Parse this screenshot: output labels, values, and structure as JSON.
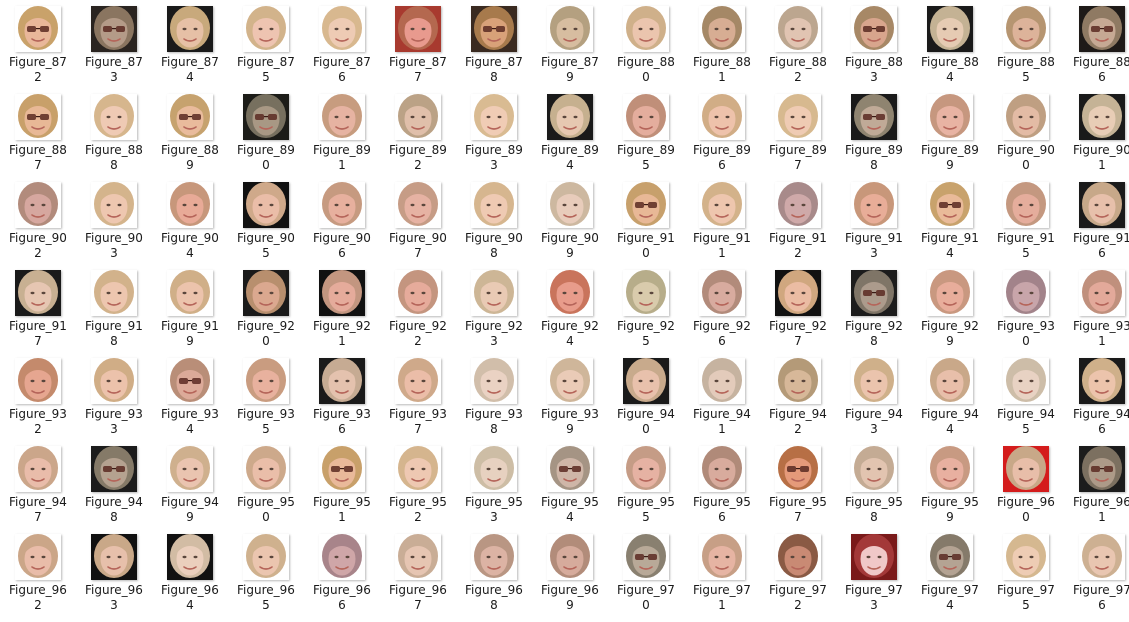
{
  "files": [
    {
      "name": "Figure_872",
      "thumb": {
        "hair": "#c9a26a",
        "skin": "#e9b79a",
        "bg": "#ffffff",
        "glasses": true
      }
    },
    {
      "name": "Figure_873",
      "thumb": {
        "hair": "#8a7560",
        "skin": "#b49b88",
        "bg": "#2a2420",
        "glasses": true
      }
    },
    {
      "name": "Figure_874",
      "thumb": {
        "hair": "#c8a97c",
        "skin": "#e6c0a6",
        "bg": "#1a1a1a",
        "glasses": false
      }
    },
    {
      "name": "Figure_875",
      "thumb": {
        "hair": "#d2b38b",
        "skin": "#eec4b1",
        "bg": "#ffffff",
        "glasses": false
      }
    },
    {
      "name": "Figure_876",
      "thumb": {
        "hair": "#d8b88f",
        "skin": "#eecbb4",
        "bg": "#ffffff",
        "glasses": false
      }
    },
    {
      "name": "Figure_877",
      "thumb": {
        "hair": "#b4684f",
        "skin": "#e89a8e",
        "bg": "#a83a2f",
        "glasses": false
      }
    },
    {
      "name": "Figure_878",
      "thumb": {
        "hair": "#a77a4c",
        "skin": "#d8a179",
        "bg": "#3a2a20",
        "glasses": true
      }
    },
    {
      "name": "Figure_879",
      "thumb": {
        "hair": "#b4a080",
        "skin": "#d7bda0",
        "bg": "#ffffff",
        "glasses": false
      }
    },
    {
      "name": "Figure_880",
      "thumb": {
        "hair": "#cfb08a",
        "skin": "#ebc5ae",
        "bg": "#ffffff",
        "glasses": false
      }
    },
    {
      "name": "Figure_881",
      "thumb": {
        "hair": "#a58866",
        "skin": "#d7ad93",
        "bg": "#ffffff",
        "glasses": false
      }
    },
    {
      "name": "Figure_882",
      "thumb": {
        "hair": "#bca68f",
        "skin": "#e1c4b2",
        "bg": "#ffffff",
        "glasses": false
      }
    },
    {
      "name": "Figure_883",
      "thumb": {
        "hair": "#a78866",
        "skin": "#d8a58d",
        "bg": "#ffffff",
        "glasses": true
      }
    },
    {
      "name": "Figure_884",
      "thumb": {
        "hair": "#c4b294",
        "skin": "#e6cbb3",
        "bg": "#1a1a1a",
        "glasses": false
      }
    },
    {
      "name": "Figure_885",
      "thumb": {
        "hair": "#b69571",
        "skin": "#ddb39a",
        "bg": "#ffffff",
        "glasses": false
      }
    },
    {
      "name": "Figure_886",
      "thumb": {
        "hair": "#8f7a63",
        "skin": "#c6a994",
        "bg": "#1e1a18",
        "glasses": true
      }
    },
    {
      "name": "Figure_887",
      "thumb": {
        "hair": "#c8a06a",
        "skin": "#e8b896",
        "bg": "#ffffff",
        "glasses": true
      }
    },
    {
      "name": "Figure_888",
      "thumb": {
        "hair": "#d6b68d",
        "skin": "#efcab4",
        "bg": "#ffffff",
        "glasses": false
      }
    },
    {
      "name": "Figure_889",
      "thumb": {
        "hair": "#c6a26e",
        "skin": "#e9bb9c",
        "bg": "#ffffff",
        "glasses": true
      }
    },
    {
      "name": "Figure_890",
      "thumb": {
        "hair": "#77705f",
        "skin": "#a89884",
        "bg": "#1c1c18",
        "glasses": true
      }
    },
    {
      "name": "Figure_891",
      "thumb": {
        "hair": "#c79c7f",
        "skin": "#e6b3a2",
        "bg": "#ffffff",
        "glasses": false
      }
    },
    {
      "name": "Figure_892",
      "thumb": {
        "hair": "#bba286",
        "skin": "#e0bfaa",
        "bg": "#ffffff",
        "glasses": false
      }
    },
    {
      "name": "Figure_893",
      "thumb": {
        "hair": "#d9bb92",
        "skin": "#f0ccb5",
        "bg": "#ffffff",
        "glasses": false
      }
    },
    {
      "name": "Figure_894",
      "thumb": {
        "hair": "#c6b08f",
        "skin": "#e6c8b1",
        "bg": "#1a1a1a",
        "glasses": false
      }
    },
    {
      "name": "Figure_895",
      "thumb": {
        "hair": "#c08f79",
        "skin": "#e4ad9d",
        "bg": "#ffffff",
        "glasses": false
      }
    },
    {
      "name": "Figure_896",
      "thumb": {
        "hair": "#d1ad86",
        "skin": "#eec2ab",
        "bg": "#ffffff",
        "glasses": false
      }
    },
    {
      "name": "Figure_897",
      "thumb": {
        "hair": "#d7b98f",
        "skin": "#efcbb3",
        "bg": "#ffffff",
        "glasses": false
      }
    },
    {
      "name": "Figure_898",
      "thumb": {
        "hair": "#8f8470",
        "skin": "#c0aa97",
        "bg": "#1a1a1a",
        "glasses": true
      }
    },
    {
      "name": "Figure_899",
      "thumb": {
        "hair": "#c6977f",
        "skin": "#e8b3a3",
        "bg": "#ffffff",
        "glasses": false
      }
    },
    {
      "name": "Figure_900",
      "thumb": {
        "hair": "#bf9f82",
        "skin": "#e3bba5",
        "bg": "#ffffff",
        "glasses": false
      }
    },
    {
      "name": "Figure_901",
      "thumb": {
        "hair": "#c5b396",
        "skin": "#e8cdb6",
        "bg": "#1a1a1a",
        "glasses": false
      }
    },
    {
      "name": "Figure_902",
      "thumb": {
        "hair": "#b28b7c",
        "skin": "#d6a79f",
        "bg": "#ffffff",
        "glasses": false
      }
    },
    {
      "name": "Figure_903",
      "thumb": {
        "hair": "#d4b48c",
        "skin": "#eec7b0",
        "bg": "#ffffff",
        "glasses": false
      }
    },
    {
      "name": "Figure_904",
      "thumb": {
        "hair": "#c7977b",
        "skin": "#e8aa97",
        "bg": "#ffffff",
        "glasses": false
      }
    },
    {
      "name": "Figure_905",
      "thumb": {
        "hair": "#cfa98a",
        "skin": "#eabda8",
        "bg": "#111111",
        "glasses": false
      }
    },
    {
      "name": "Figure_906",
      "thumb": {
        "hair": "#c69a80",
        "skin": "#e7b09e",
        "bg": "#ffffff",
        "glasses": false
      }
    },
    {
      "name": "Figure_907",
      "thumb": {
        "hair": "#c69c86",
        "skin": "#e6b2a3",
        "bg": "#ffffff",
        "glasses": false
      }
    },
    {
      "name": "Figure_908",
      "thumb": {
        "hair": "#d6b68f",
        "skin": "#efcab3",
        "bg": "#ffffff",
        "glasses": false
      }
    },
    {
      "name": "Figure_909",
      "thumb": {
        "hair": "#cdb8a0",
        "skin": "#e8ccbb",
        "bg": "#ffffff",
        "glasses": false
      }
    },
    {
      "name": "Figure_910",
      "thumb": {
        "hair": "#c7a06c",
        "skin": "#e8b896",
        "bg": "#ffffff",
        "glasses": true
      }
    },
    {
      "name": "Figure_911",
      "thumb": {
        "hair": "#d3b28a",
        "skin": "#eec6ae",
        "bg": "#ffffff",
        "glasses": false
      }
    },
    {
      "name": "Figure_912",
      "thumb": {
        "hair": "#a88a8a",
        "skin": "#cfa9a9",
        "bg": "#ffffff",
        "glasses": false
      }
    },
    {
      "name": "Figure_913",
      "thumb": {
        "hair": "#c8977a",
        "skin": "#e8ad98",
        "bg": "#ffffff",
        "glasses": false
      }
    },
    {
      "name": "Figure_914",
      "thumb": {
        "hair": "#c8a26c",
        "skin": "#e9ba99",
        "bg": "#ffffff",
        "glasses": true
      }
    },
    {
      "name": "Figure_915",
      "thumb": {
        "hair": "#c49880",
        "skin": "#e5ad9c",
        "bg": "#ffffff",
        "glasses": false
      }
    },
    {
      "name": "Figure_916",
      "thumb": {
        "hair": "#c7a889",
        "skin": "#e7c0ab",
        "bg": "#1a1a1a",
        "glasses": false
      }
    },
    {
      "name": "Figure_917",
      "thumb": {
        "hair": "#c8b092",
        "skin": "#e6c6b2",
        "bg": "#1a1a1a",
        "glasses": false
      }
    },
    {
      "name": "Figure_918",
      "thumb": {
        "hair": "#d2b28b",
        "skin": "#edc6af",
        "bg": "#ffffff",
        "glasses": false
      }
    },
    {
      "name": "Figure_919",
      "thumb": {
        "hair": "#d0af88",
        "skin": "#ecc3ac",
        "bg": "#ffffff",
        "glasses": false
      }
    },
    {
      "name": "Figure_920",
      "thumb": {
        "hair": "#b88f6e",
        "skin": "#dba88f",
        "bg": "#1a1a1a",
        "glasses": false
      }
    },
    {
      "name": "Figure_921",
      "thumb": {
        "hair": "#c39680",
        "skin": "#e5ab9b",
        "bg": "#111111",
        "glasses": false
      }
    },
    {
      "name": "Figure_922",
      "thumb": {
        "hair": "#c4957f",
        "skin": "#e6ab9b",
        "bg": "#ffffff",
        "glasses": false
      }
    },
    {
      "name": "Figure_923",
      "thumb": {
        "hair": "#cdb696",
        "skin": "#e9cab4",
        "bg": "#ffffff",
        "glasses": false
      }
    },
    {
      "name": "Figure_924",
      "thumb": {
        "hair": "#c9745c",
        "skin": "#e89c8b",
        "bg": "#ffffff",
        "glasses": false
      }
    },
    {
      "name": "Figure_925",
      "thumb": {
        "hair": "#b7ad8a",
        "skin": "#d9cbac",
        "bg": "#ffffff",
        "glasses": false
      }
    },
    {
      "name": "Figure_926",
      "thumb": {
        "hair": "#b28b7b",
        "skin": "#d8ab9f",
        "bg": "#ffffff",
        "glasses": false
      }
    },
    {
      "name": "Figure_927",
      "thumb": {
        "hair": "#d0a77f",
        "skin": "#ebbca3",
        "bg": "#111111",
        "glasses": false
      }
    },
    {
      "name": "Figure_928",
      "thumb": {
        "hair": "#7f7567",
        "skin": "#ac9b8c",
        "bg": "#1c1c1c",
        "glasses": true
      }
    },
    {
      "name": "Figure_929",
      "thumb": {
        "hair": "#c99880",
        "skin": "#e8ad9b",
        "bg": "#ffffff",
        "glasses": false
      }
    },
    {
      "name": "Figure_930",
      "thumb": {
        "hair": "#a2838a",
        "skin": "#c8a5aa",
        "bg": "#ffffff",
        "glasses": false
      }
    },
    {
      "name": "Figure_931",
      "thumb": {
        "hair": "#c0907d",
        "skin": "#e3a99a",
        "bg": "#ffffff",
        "glasses": false
      }
    },
    {
      "name": "Figure_932",
      "thumb": {
        "hair": "#c48a6c",
        "skin": "#e6a690",
        "bg": "#ffffff",
        "glasses": false
      }
    },
    {
      "name": "Figure_933",
      "thumb": {
        "hair": "#d0ad86",
        "skin": "#ecc2ab",
        "bg": "#ffffff",
        "glasses": false
      }
    },
    {
      "name": "Figure_934",
      "thumb": {
        "hair": "#b98e78",
        "skin": "#dcaa99",
        "bg": "#ffffff",
        "glasses": true
      }
    },
    {
      "name": "Figure_935",
      "thumb": {
        "hair": "#c99c80",
        "skin": "#e8b19e",
        "bg": "#ffffff",
        "glasses": false
      }
    },
    {
      "name": "Figure_936",
      "thumb": {
        "hair": "#c6ab93",
        "skin": "#e4c2ae",
        "bg": "#1a1a1a",
        "glasses": false
      }
    },
    {
      "name": "Figure_937",
      "thumb": {
        "hair": "#cfa98a",
        "skin": "#ebbda8",
        "bg": "#ffffff",
        "glasses": false
      }
    },
    {
      "name": "Figure_938",
      "thumb": {
        "hair": "#d1beaa",
        "skin": "#ead2c3",
        "bg": "#ffffff",
        "glasses": false
      }
    },
    {
      "name": "Figure_939",
      "thumb": {
        "hair": "#cfb69a",
        "skin": "#eacbb7",
        "bg": "#ffffff",
        "glasses": false
      }
    },
    {
      "name": "Figure_940",
      "thumb": {
        "hair": "#c8aa8c",
        "skin": "#e8c1ac",
        "bg": "#1a1a1a",
        "glasses": false
      }
    },
    {
      "name": "Figure_941",
      "thumb": {
        "hair": "#c6b3a0",
        "skin": "#e3cbbb",
        "bg": "#ffffff",
        "glasses": false
      }
    },
    {
      "name": "Figure_942",
      "thumb": {
        "hair": "#b49a78",
        "skin": "#d7b899",
        "bg": "#ffffff",
        "glasses": false
      }
    },
    {
      "name": "Figure_943",
      "thumb": {
        "hair": "#cfb08a",
        "skin": "#ebc4ad",
        "bg": "#ffffff",
        "glasses": false
      }
    },
    {
      "name": "Figure_944",
      "thumb": {
        "hair": "#c9a889",
        "skin": "#e8bfaa",
        "bg": "#ffffff",
        "glasses": false
      }
    },
    {
      "name": "Figure_945",
      "thumb": {
        "hair": "#cdbda8",
        "skin": "#e8d2c3",
        "bg": "#ffffff",
        "glasses": false
      }
    },
    {
      "name": "Figure_946",
      "thumb": {
        "hair": "#cfb08a",
        "skin": "#ecc4ac",
        "bg": "#1a1a1a",
        "glasses": false
      }
    },
    {
      "name": "Figure_947",
      "thumb": {
        "hair": "#cba68a",
        "skin": "#e9bcaa",
        "bg": "#ffffff",
        "glasses": false
      }
    },
    {
      "name": "Figure_948",
      "thumb": {
        "hair": "#857a68",
        "skin": "#b5a290",
        "bg": "#1c1c1c",
        "glasses": true
      }
    },
    {
      "name": "Figure_949",
      "thumb": {
        "hair": "#cfb08e",
        "skin": "#eac4b0",
        "bg": "#ffffff",
        "glasses": false
      }
    },
    {
      "name": "Figure_950",
      "thumb": {
        "hair": "#cda98b",
        "skin": "#eabea9",
        "bg": "#ffffff",
        "glasses": false
      }
    },
    {
      "name": "Figure_951",
      "thumb": {
        "hair": "#c8a06a",
        "skin": "#e9b99a",
        "bg": "#ffffff",
        "glasses": true
      }
    },
    {
      "name": "Figure_952",
      "thumb": {
        "hair": "#d5b58e",
        "skin": "#eec8b2",
        "bg": "#ffffff",
        "glasses": false
      }
    },
    {
      "name": "Figure_953",
      "thumb": {
        "hair": "#cdbda5",
        "skin": "#e7d1c0",
        "bg": "#ffffff",
        "glasses": false
      }
    },
    {
      "name": "Figure_954",
      "thumb": {
        "hair": "#a59484",
        "skin": "#cfb6a8",
        "bg": "#ffffff",
        "glasses": true
      }
    },
    {
      "name": "Figure_955",
      "thumb": {
        "hair": "#c59c86",
        "skin": "#e6b2a3",
        "bg": "#ffffff",
        "glasses": false
      }
    },
    {
      "name": "Figure_956",
      "thumb": {
        "hair": "#b08a79",
        "skin": "#d8ab9d",
        "bg": "#ffffff",
        "glasses": false
      }
    },
    {
      "name": "Figure_957",
      "thumb": {
        "hair": "#b76f45",
        "skin": "#e59a7a",
        "bg": "#ffffff",
        "glasses": true
      }
    },
    {
      "name": "Figure_958",
      "thumb": {
        "hair": "#c4ab94",
        "skin": "#e2c4b0",
        "bg": "#ffffff",
        "glasses": false
      }
    },
    {
      "name": "Figure_959",
      "thumb": {
        "hair": "#c89a82",
        "skin": "#e8b0a0",
        "bg": "#ffffff",
        "glasses": false
      }
    },
    {
      "name": "Figure_960",
      "thumb": {
        "hair": "#c8a888",
        "skin": "#e8bea9",
        "bg": "#d41c1c",
        "glasses": false
      }
    },
    {
      "name": "Figure_961",
      "thumb": {
        "hair": "#7c7060",
        "skin": "#ad9a88",
        "bg": "#1c1c1c",
        "glasses": true
      }
    },
    {
      "name": "Figure_962",
      "thumb": {
        "hair": "#cba688",
        "skin": "#e9bca9",
        "bg": "#ffffff",
        "glasses": false
      }
    },
    {
      "name": "Figure_963",
      "thumb": {
        "hair": "#c9a888",
        "skin": "#e7c0ab",
        "bg": "#111111",
        "glasses": false
      }
    },
    {
      "name": "Figure_964",
      "thumb": {
        "hair": "#d2bca4",
        "skin": "#ebcfbd",
        "bg": "#111111",
        "glasses": false
      }
    },
    {
      "name": "Figure_965",
      "thumb": {
        "hair": "#cfb18e",
        "skin": "#ebc5af",
        "bg": "#ffffff",
        "glasses": false
      }
    },
    {
      "name": "Figure_966",
      "thumb": {
        "hair": "#a8848a",
        "skin": "#cfa6a8",
        "bg": "#ffffff",
        "glasses": false
      }
    },
    {
      "name": "Figure_967",
      "thumb": {
        "hair": "#c9ad96",
        "skin": "#e6c5b2",
        "bg": "#ffffff",
        "glasses": false
      }
    },
    {
      "name": "Figure_968",
      "thumb": {
        "hair": "#b99683",
        "skin": "#dcb3a4",
        "bg": "#ffffff",
        "glasses": false
      }
    },
    {
      "name": "Figure_969",
      "thumb": {
        "hair": "#b28c7a",
        "skin": "#d6ab9c",
        "bg": "#ffffff",
        "glasses": false
      }
    },
    {
      "name": "Figure_970",
      "thumb": {
        "hair": "#898070",
        "skin": "#b8a998",
        "bg": "#ffffff",
        "glasses": true
      }
    },
    {
      "name": "Figure_971",
      "thumb": {
        "hair": "#c79f86",
        "skin": "#e6b4a3",
        "bg": "#ffffff",
        "glasses": false
      }
    },
    {
      "name": "Figure_972",
      "thumb": {
        "hair": "#8a5a44",
        "skin": "#c98a74",
        "bg": "#ffffff",
        "glasses": false
      }
    },
    {
      "name": "Figure_973",
      "thumb": {
        "hair": "#a33838",
        "skin": "#f0c8c8",
        "bg": "#7a1a1a",
        "glasses": false
      }
    },
    {
      "name": "Figure_974",
      "thumb": {
        "hair": "#857a6a",
        "skin": "#b4a393",
        "bg": "#ffffff",
        "glasses": true
      }
    },
    {
      "name": "Figure_975",
      "thumb": {
        "hair": "#d5b890",
        "skin": "#eeccb4",
        "bg": "#ffffff",
        "glasses": false
      }
    },
    {
      "name": "Figure_976",
      "thumb": {
        "hair": "#cdb092",
        "skin": "#e9c6b1",
        "bg": "#ffffff",
        "glasses": false
      }
    }
  ]
}
